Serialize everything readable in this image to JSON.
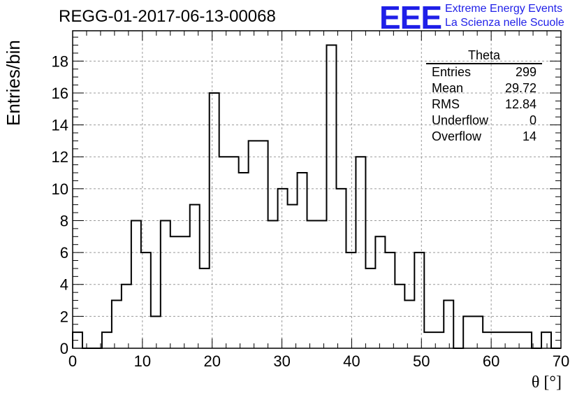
{
  "chart_data": {
    "type": "bar",
    "title": "REGG-01-2017-06-13-00068",
    "xlabel": "θ [°]",
    "ylabel": "Entries/bin",
    "xlim": [
      0,
      70
    ],
    "ylim": [
      0,
      19.9
    ],
    "bin_width": 1.4,
    "x_ticks": [
      "0",
      "10",
      "20",
      "30",
      "40",
      "50",
      "60",
      "70"
    ],
    "y_ticks": [
      "0",
      "2",
      "4",
      "6",
      "8",
      "10",
      "12",
      "14",
      "16",
      "18"
    ],
    "grid": true,
    "values": [
      1,
      0,
      0,
      1,
      3,
      4,
      8,
      6,
      2,
      8,
      7,
      7,
      9,
      5,
      16,
      12,
      12,
      11,
      13,
      13,
      8,
      10,
      9,
      11,
      8,
      8,
      19,
      10,
      6,
      12,
      5,
      7,
      6,
      4,
      3,
      6,
      1,
      1,
      3,
      0,
      2,
      2,
      1,
      1,
      1,
      1,
      1,
      0,
      1,
      0
    ]
  },
  "stats_box": {
    "name": "Theta",
    "rows": [
      {
        "label": "Entries",
        "value": "299"
      },
      {
        "label": "Mean",
        "value": "29.72"
      },
      {
        "label": "RMS",
        "value": "12.84"
      },
      {
        "label": "Underflow",
        "value": "0"
      },
      {
        "label": "Overflow",
        "value": "14"
      }
    ]
  },
  "logo": {
    "mark": "EEE",
    "line1": "Extreme Energy Events",
    "line2": "La Scienza nelle Scuole",
    "color": "#1f1fe8"
  }
}
